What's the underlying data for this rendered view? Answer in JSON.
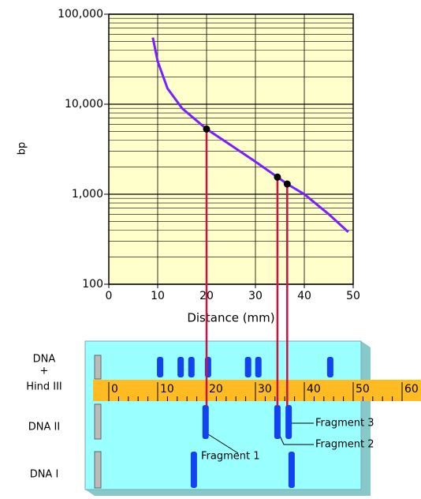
{
  "chart_data": {
    "type": "line",
    "ylabel": "bp",
    "xlabel": "Distance (mm)",
    "xlim": [
      0,
      50
    ],
    "xticks": [
      0,
      10,
      20,
      30,
      40,
      50
    ],
    "ylim": [
      100,
      100000
    ],
    "log_y": true,
    "grid": true,
    "background": "#ffffcc",
    "yticks": [
      {
        "value": 100,
        "label": "100"
      },
      {
        "value": 1000,
        "label": "1,000"
      },
      {
        "value": 10000,
        "label": "10,000"
      },
      {
        "value": 100000,
        "label": "100,000"
      }
    ],
    "series": [
      {
        "color": "#7a1fff",
        "x": [
          9,
          10,
          12,
          15,
          20,
          25,
          30,
          34.5,
          36.5,
          40,
          45,
          49
        ],
        "values": [
          55000,
          30000,
          15000,
          9000,
          5300,
          3500,
          2300,
          1550,
          1300,
          1000,
          600,
          380
        ]
      }
    ],
    "points": {
      "x": [
        20,
        34.5,
        36.5
      ],
      "values": [
        5300,
        1550,
        1300
      ],
      "line_color": "#cc1144"
    }
  },
  "gel": {
    "band_color": "#1144ee",
    "lanes": [
      {
        "label": [
          "DNA",
          "+",
          "Hind III"
        ],
        "bands": [
          10.5,
          14.7,
          16.9,
          20.3,
          28.5,
          30.6,
          45.3
        ]
      },
      {
        "label": [
          "DNA II"
        ],
        "bands": [
          19.8,
          34.5,
          36.8
        ]
      },
      {
        "label": [
          "DNA I"
        ],
        "bands": [
          17.4,
          37.4
        ]
      }
    ],
    "ruler": {
      "ticks": [
        0,
        10,
        20,
        30,
        40,
        50,
        60
      ]
    },
    "fragments": [
      {
        "label": "Fragment 1"
      },
      {
        "label": "Fragment 2"
      },
      {
        "label": "Fragment 3"
      }
    ]
  }
}
